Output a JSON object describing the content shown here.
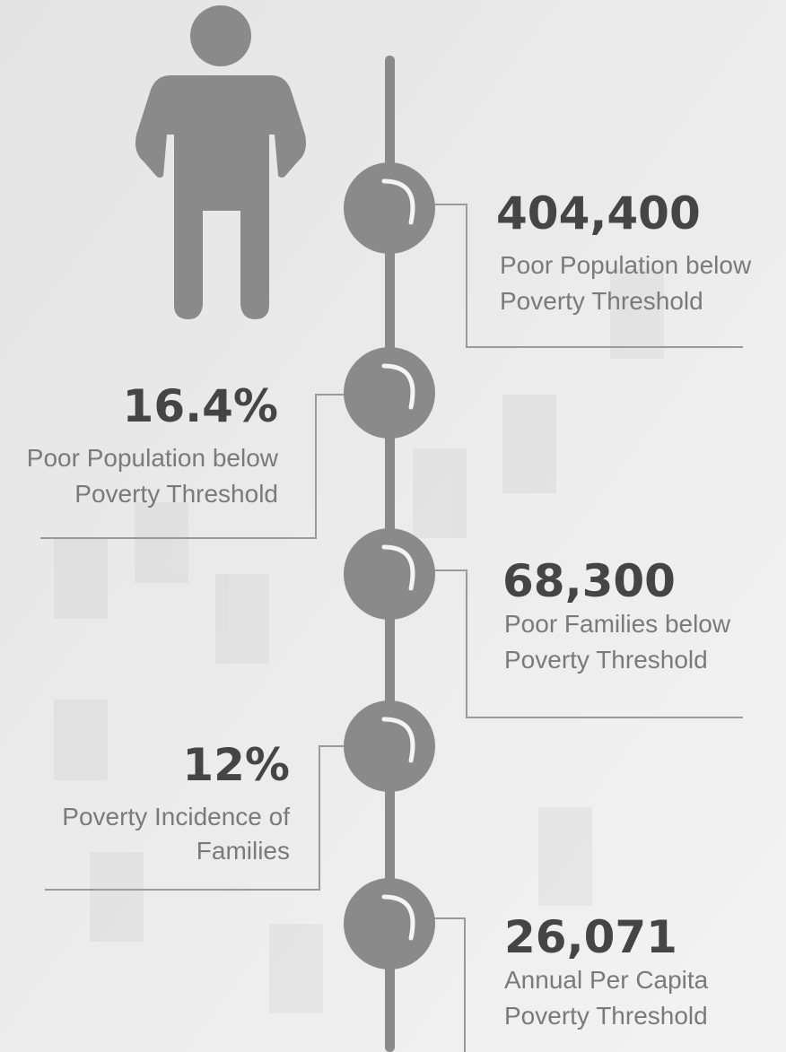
{
  "items": [
    {
      "value": "404,400",
      "lines": [
        "Poor Population below",
        "Poverty Threshold"
      ]
    },
    {
      "value": "16.4%",
      "lines": [
        "Poor Population below",
        "Poverty Threshold"
      ]
    },
    {
      "value": "68,300",
      "lines": [
        "Poor Families below",
        "Poverty Threshold"
      ]
    },
    {
      "value": "12%",
      "lines": [
        "Poverty Incidence of",
        "Families"
      ]
    },
    {
      "value": "26,071",
      "lines": [
        "Annual Per Capita",
        "Poverty Threshold"
      ]
    }
  ]
}
